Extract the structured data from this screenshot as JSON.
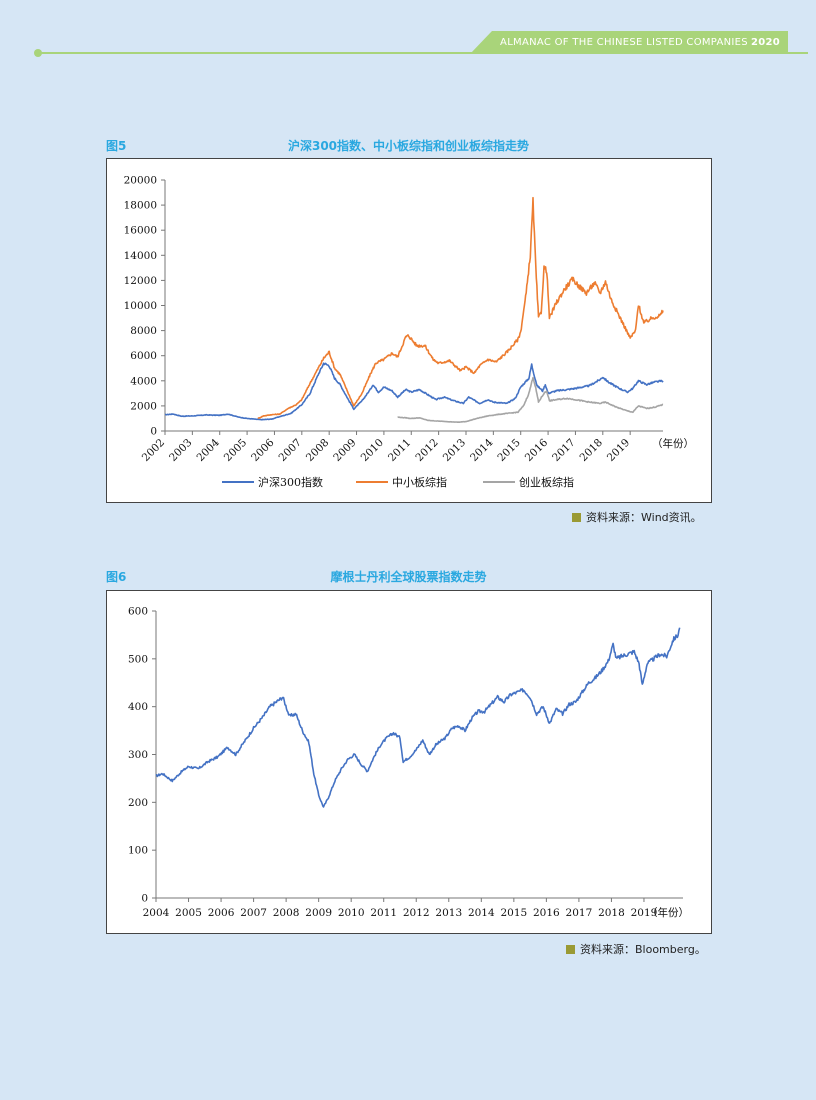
{
  "header": {
    "banner_text": "ALMANAC OF THE CHINESE LISTED COMPANIES",
    "banner_year": "2020"
  },
  "figures": [
    {
      "label": "图5",
      "title": "沪深300指数、中小板综指和创业板综指走势",
      "source": "资料来源：Wind资讯。"
    },
    {
      "label": "图6",
      "title": "摩根士丹利全球股票指数走势",
      "source": "资料来源：Bloomberg。"
    }
  ],
  "chart_data": [
    {
      "type": "line",
      "title": "沪深300指数、中小板综指和创业板综指走势",
      "x_unit_label": "（年份）",
      "x_ticks": [
        "2002",
        "2003",
        "2004",
        "2005",
        "2006",
        "2007",
        "2008",
        "2009",
        "2010",
        "2011",
        "2012",
        "2013",
        "2014",
        "2015",
        "2016",
        "2017",
        "2018",
        "2019"
      ],
      "xlim": [
        2002.0,
        2020.2
      ],
      "ylim": [
        0,
        20000
      ],
      "y_ticks": [
        0,
        2000,
        4000,
        6000,
        8000,
        10000,
        12000,
        14000,
        16000,
        18000,
        20000
      ],
      "legend_position": "bottom",
      "series": [
        {
          "name": "沪深300指数",
          "color": "#4472c4",
          "points": [
            [
              2002.0,
              1300
            ],
            [
              2002.3,
              1350
            ],
            [
              2002.6,
              1180
            ],
            [
              2003.0,
              1200
            ],
            [
              2003.5,
              1280
            ],
            [
              2004.0,
              1250
            ],
            [
              2004.3,
              1350
            ],
            [
              2004.7,
              1100
            ],
            [
              2005.0,
              1000
            ],
            [
              2005.5,
              900
            ],
            [
              2005.9,
              950
            ],
            [
              2006.2,
              1150
            ],
            [
              2006.6,
              1400
            ],
            [
              2007.0,
              2100
            ],
            [
              2007.3,
              3000
            ],
            [
              2007.6,
              4500
            ],
            [
              2007.8,
              5400
            ],
            [
              2008.0,
              5200
            ],
            [
              2008.2,
              4200
            ],
            [
              2008.4,
              3700
            ],
            [
              2008.7,
              2500
            ],
            [
              2008.9,
              1750
            ],
            [
              2009.2,
              2400
            ],
            [
              2009.5,
              3300
            ],
            [
              2009.6,
              3700
            ],
            [
              2009.8,
              3100
            ],
            [
              2010.0,
              3500
            ],
            [
              2010.3,
              3200
            ],
            [
              2010.5,
              2700
            ],
            [
              2010.8,
              3300
            ],
            [
              2011.0,
              3100
            ],
            [
              2011.3,
              3300
            ],
            [
              2011.6,
              2900
            ],
            [
              2011.9,
              2500
            ],
            [
              2012.2,
              2700
            ],
            [
              2012.5,
              2450
            ],
            [
              2012.9,
              2200
            ],
            [
              2013.1,
              2700
            ],
            [
              2013.5,
              2200
            ],
            [
              2013.8,
              2500
            ],
            [
              2014.0,
              2300
            ],
            [
              2014.5,
              2200
            ],
            [
              2014.8,
              2600
            ],
            [
              2015.0,
              3500
            ],
            [
              2015.3,
              4200
            ],
            [
              2015.4,
              5300
            ],
            [
              2015.5,
              4400
            ],
            [
              2015.6,
              3600
            ],
            [
              2015.8,
              3200
            ],
            [
              2015.9,
              3700
            ],
            [
              2016.0,
              3000
            ],
            [
              2016.3,
              3200
            ],
            [
              2016.7,
              3300
            ],
            [
              2017.0,
              3400
            ],
            [
              2017.5,
              3600
            ],
            [
              2017.9,
              4100
            ],
            [
              2018.0,
              4300
            ],
            [
              2018.2,
              3900
            ],
            [
              2018.6,
              3400
            ],
            [
              2018.9,
              3100
            ],
            [
              2019.1,
              3400
            ],
            [
              2019.3,
              4000
            ],
            [
              2019.6,
              3700
            ],
            [
              2019.9,
              3900
            ],
            [
              2020.2,
              4000
            ]
          ]
        },
        {
          "name": "中小板综指",
          "color": "#ed7d31",
          "points": [
            [
              2005.4,
              1000
            ],
            [
              2005.6,
              1200
            ],
            [
              2005.9,
              1300
            ],
            [
              2006.2,
              1350
            ],
            [
              2006.5,
              1800
            ],
            [
              2006.8,
              2100
            ],
            [
              2007.0,
              2500
            ],
            [
              2007.3,
              3800
            ],
            [
              2007.6,
              5000
            ],
            [
              2007.8,
              5800
            ],
            [
              2008.0,
              6300
            ],
            [
              2008.2,
              5000
            ],
            [
              2008.4,
              4500
            ],
            [
              2008.7,
              3000
            ],
            [
              2008.9,
              2000
            ],
            [
              2009.2,
              3000
            ],
            [
              2009.5,
              4500
            ],
            [
              2009.7,
              5400
            ],
            [
              2010.0,
              5700
            ],
            [
              2010.3,
              6200
            ],
            [
              2010.5,
              5900
            ],
            [
              2010.8,
              7500
            ],
            [
              2010.9,
              7600
            ],
            [
              2011.2,
              6800
            ],
            [
              2011.5,
              6800
            ],
            [
              2011.8,
              5700
            ],
            [
              2012.0,
              5400
            ],
            [
              2012.4,
              5600
            ],
            [
              2012.8,
              4800
            ],
            [
              2013.0,
              5100
            ],
            [
              2013.3,
              4600
            ],
            [
              2013.5,
              5200
            ],
            [
              2013.8,
              5700
            ],
            [
              2014.1,
              5500
            ],
            [
              2014.5,
              6300
            ],
            [
              2014.9,
              7300
            ],
            [
              2015.0,
              7900
            ],
            [
              2015.2,
              11000
            ],
            [
              2015.35,
              14000
            ],
            [
              2015.45,
              18300
            ],
            [
              2015.55,
              13000
            ],
            [
              2015.65,
              9000
            ],
            [
              2015.75,
              9500
            ],
            [
              2015.85,
              13000
            ],
            [
              2015.95,
              12800
            ],
            [
              2016.05,
              9000
            ],
            [
              2016.3,
              10200
            ],
            [
              2016.6,
              11300
            ],
            [
              2016.9,
              12100
            ],
            [
              2017.1,
              11600
            ],
            [
              2017.4,
              11000
            ],
            [
              2017.7,
              11800
            ],
            [
              2017.9,
              11000
            ],
            [
              2018.1,
              11900
            ],
            [
              2018.3,
              10500
            ],
            [
              2018.5,
              9600
            ],
            [
              2018.8,
              8300
            ],
            [
              2019.0,
              7400
            ],
            [
              2019.2,
              8000
            ],
            [
              2019.3,
              10100
            ],
            [
              2019.5,
              8600
            ],
            [
              2019.8,
              9000
            ],
            [
              2020.1,
              9200
            ],
            [
              2020.2,
              9600
            ]
          ]
        },
        {
          "name": "创业板综指",
          "color": "#a5a5a5",
          "points": [
            [
              2010.5,
              1100
            ],
            [
              2010.8,
              1050
            ],
            [
              2011.0,
              1000
            ],
            [
              2011.3,
              1050
            ],
            [
              2011.6,
              850
            ],
            [
              2011.9,
              800
            ],
            [
              2012.3,
              750
            ],
            [
              2012.7,
              700
            ],
            [
              2013.0,
              750
            ],
            [
              2013.4,
              1000
            ],
            [
              2013.8,
              1200
            ],
            [
              2014.1,
              1300
            ],
            [
              2014.5,
              1400
            ],
            [
              2014.9,
              1500
            ],
            [
              2015.1,
              2000
            ],
            [
              2015.3,
              3000
            ],
            [
              2015.45,
              4300
            ],
            [
              2015.55,
              3400
            ],
            [
              2015.65,
              2300
            ],
            [
              2015.85,
              3000
            ],
            [
              2015.95,
              3200
            ],
            [
              2016.05,
              2400
            ],
            [
              2016.3,
              2500
            ],
            [
              2016.7,
              2600
            ],
            [
              2017.0,
              2500
            ],
            [
              2017.5,
              2300
            ],
            [
              2017.9,
              2200
            ],
            [
              2018.1,
              2300
            ],
            [
              2018.5,
              1900
            ],
            [
              2018.9,
              1600
            ],
            [
              2019.1,
              1500
            ],
            [
              2019.3,
              2000
            ],
            [
              2019.6,
              1800
            ],
            [
              2019.9,
              1900
            ],
            [
              2020.2,
              2100
            ]
          ]
        }
      ]
    },
    {
      "type": "line",
      "title": "摩根士丹利全球股票指数走势",
      "x_unit_label": "（年份）",
      "x_ticks": [
        "2004",
        "2005",
        "2006",
        "2007",
        "2008",
        "2009",
        "2010",
        "2011",
        "2012",
        "2013",
        "2014",
        "2015",
        "2016",
        "2017",
        "2018",
        "2019"
      ],
      "xlim": [
        2004.0,
        2020.2
      ],
      "ylim": [
        0,
        600
      ],
      "y_ticks": [
        0,
        100,
        200,
        300,
        400,
        500,
        600
      ],
      "series": [
        {
          "name": "",
          "color": "#4472c4",
          "points": [
            [
              2004.0,
              255
            ],
            [
              2004.2,
              260
            ],
            [
              2004.5,
              245
            ],
            [
              2004.8,
              265
            ],
            [
              2005.0,
              275
            ],
            [
              2005.3,
              270
            ],
            [
              2005.6,
              285
            ],
            [
              2005.9,
              295
            ],
            [
              2006.2,
              315
            ],
            [
              2006.45,
              300
            ],
            [
              2006.7,
              325
            ],
            [
              2007.0,
              355
            ],
            [
              2007.3,
              380
            ],
            [
              2007.5,
              400
            ],
            [
              2007.7,
              410
            ],
            [
              2007.9,
              420
            ],
            [
              2008.1,
              380
            ],
            [
              2008.3,
              385
            ],
            [
              2008.5,
              350
            ],
            [
              2008.7,
              325
            ],
            [
              2008.85,
              260
            ],
            [
              2009.0,
              215
            ],
            [
              2009.15,
              190
            ],
            [
              2009.3,
              210
            ],
            [
              2009.5,
              245
            ],
            [
              2009.7,
              270
            ],
            [
              2009.9,
              290
            ],
            [
              2010.1,
              300
            ],
            [
              2010.3,
              280
            ],
            [
              2010.5,
              265
            ],
            [
              2010.7,
              295
            ],
            [
              2010.9,
              320
            ],
            [
              2011.1,
              335
            ],
            [
              2011.3,
              345
            ],
            [
              2011.5,
              335
            ],
            [
              2011.6,
              285
            ],
            [
              2011.8,
              295
            ],
            [
              2012.0,
              310
            ],
            [
              2012.2,
              330
            ],
            [
              2012.4,
              300
            ],
            [
              2012.6,
              320
            ],
            [
              2012.9,
              335
            ],
            [
              2013.1,
              355
            ],
            [
              2013.3,
              360
            ],
            [
              2013.5,
              350
            ],
            [
              2013.7,
              375
            ],
            [
              2013.9,
              390
            ],
            [
              2014.1,
              390
            ],
            [
              2014.3,
              405
            ],
            [
              2014.5,
              420
            ],
            [
              2014.7,
              410
            ],
            [
              2014.9,
              425
            ],
            [
              2015.1,
              430
            ],
            [
              2015.3,
              435
            ],
            [
              2015.5,
              420
            ],
            [
              2015.7,
              385
            ],
            [
              2015.9,
              400
            ],
            [
              2016.1,
              365
            ],
            [
              2016.3,
              395
            ],
            [
              2016.5,
              385
            ],
            [
              2016.7,
              405
            ],
            [
              2016.9,
              410
            ],
            [
              2017.1,
              430
            ],
            [
              2017.3,
              450
            ],
            [
              2017.5,
              460
            ],
            [
              2017.7,
              475
            ],
            [
              2017.9,
              495
            ],
            [
              2018.05,
              530
            ],
            [
              2018.15,
              500
            ],
            [
              2018.3,
              505
            ],
            [
              2018.5,
              510
            ],
            [
              2018.7,
              515
            ],
            [
              2018.85,
              490
            ],
            [
              2018.95,
              445
            ],
            [
              2019.1,
              490
            ],
            [
              2019.3,
              500
            ],
            [
              2019.5,
              510
            ],
            [
              2019.7,
              505
            ],
            [
              2019.9,
              540
            ],
            [
              2020.05,
              550
            ],
            [
              2020.1,
              565
            ]
          ]
        }
      ]
    }
  ]
}
